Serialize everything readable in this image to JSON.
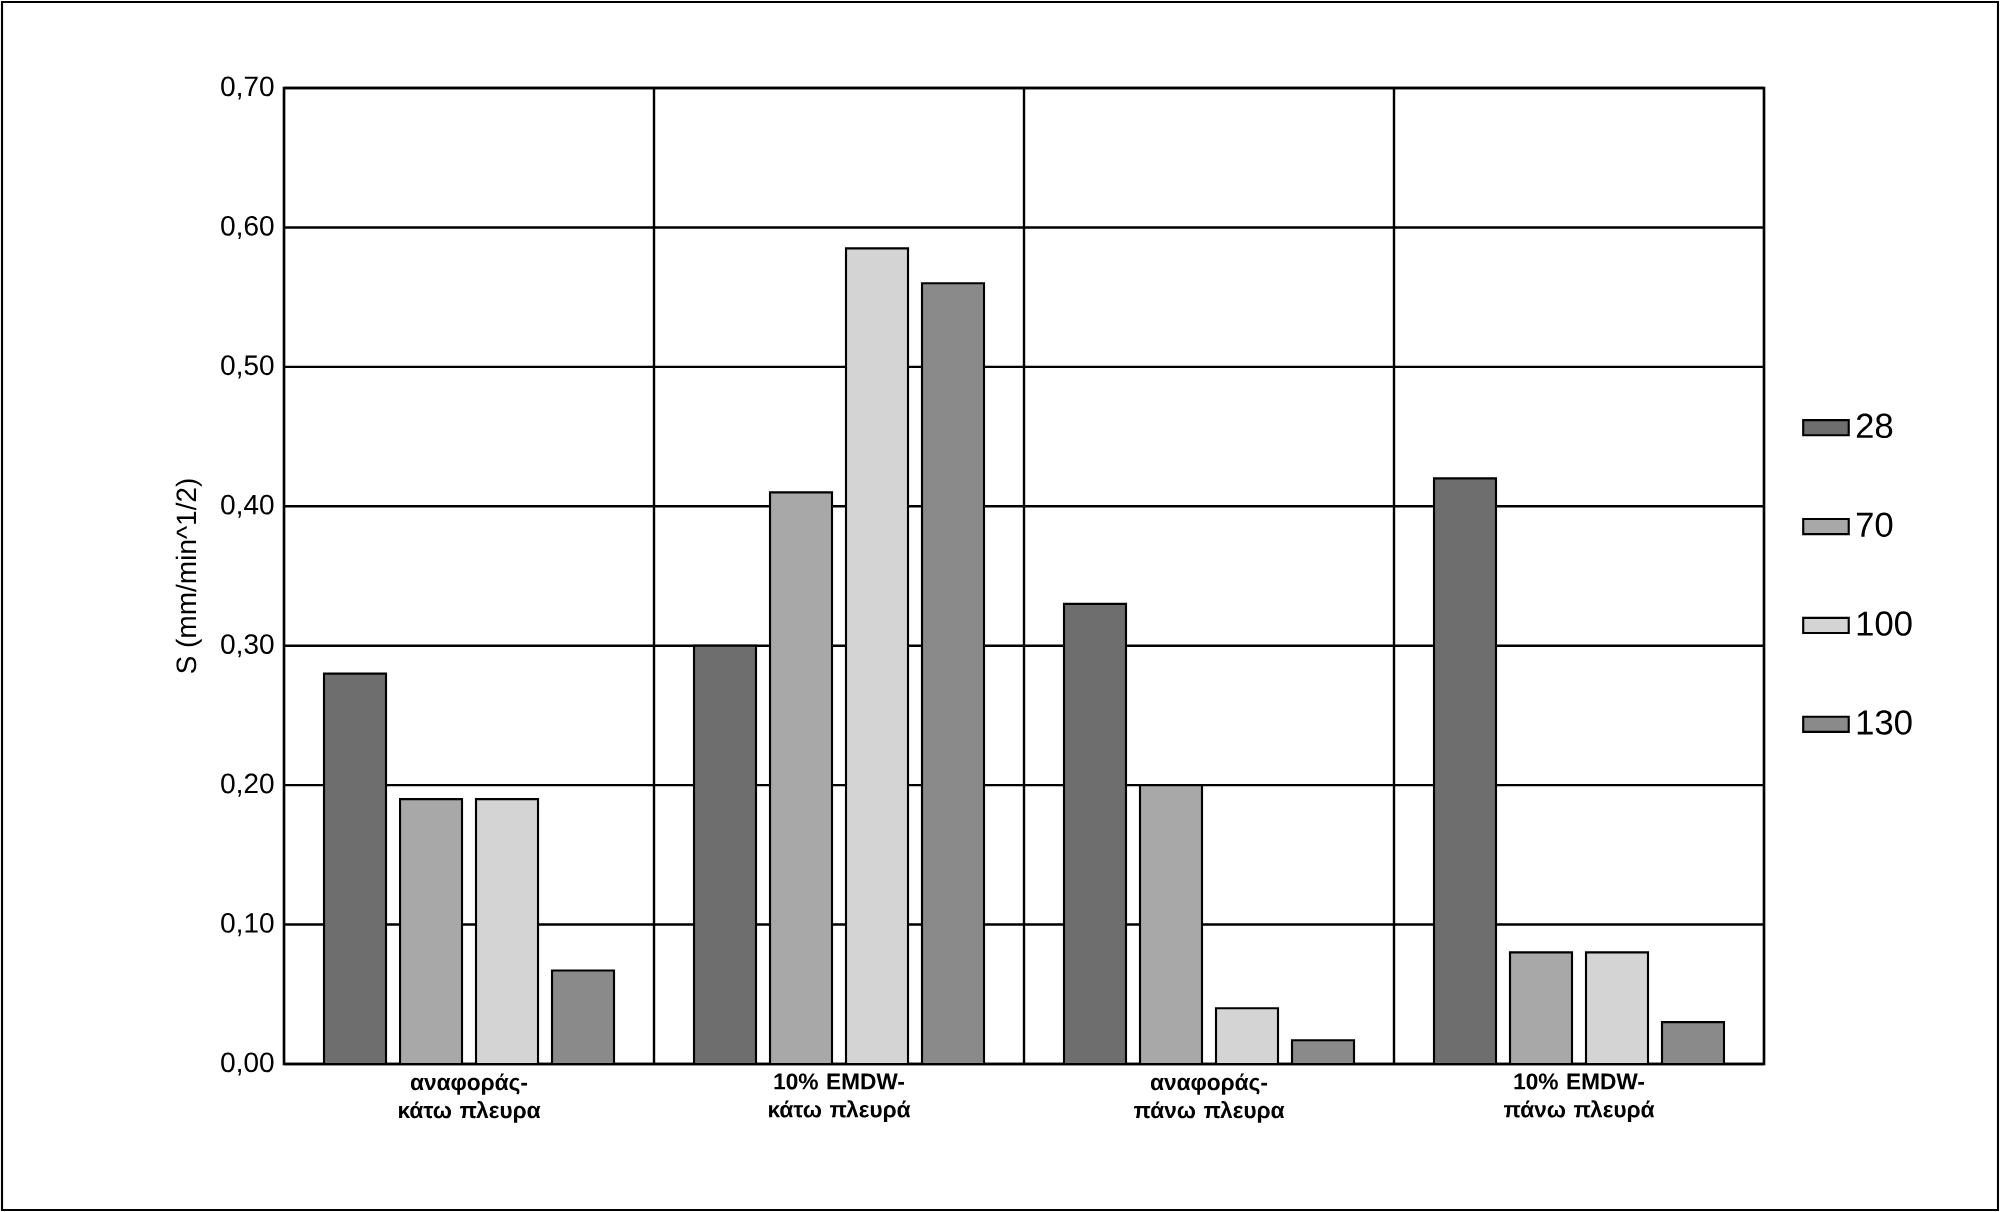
{
  "chart_data": {
    "type": "bar",
    "ylabel": "S (mm/min^1/2)",
    "categories": [
      "αναφοράς-κάτω πλευρα",
      "10% EMDW-κάτω πλευρά",
      "αναφοράς-πάνω πλευρα",
      "10% EMDW-πάνω πλευρά"
    ],
    "series": [
      {
        "name": "28",
        "color": "#6e6e6e",
        "values": [
          0.28,
          0.3,
          0.33,
          0.42
        ]
      },
      {
        "name": "70",
        "color": "#a8a8a8",
        "values": [
          0.19,
          0.41,
          0.2,
          0.08
        ]
      },
      {
        "name": "100",
        "color": "#d4d4d4",
        "values": [
          0.19,
          0.585,
          0.04,
          0.08
        ]
      },
      {
        "name": "130",
        "color": "#8a8a8a",
        "values": [
          0.067,
          0.56,
          0.017,
          0.03
        ]
      }
    ],
    "ylim": [
      0,
      0.7
    ],
    "yticks": [
      {
        "value": 0,
        "label": "0,00"
      },
      {
        "value": 0.1,
        "label": "0,10"
      },
      {
        "value": 0.2,
        "label": "0,20"
      },
      {
        "value": 0.3,
        "label": "0,30"
      },
      {
        "value": 0.4,
        "label": "0,40"
      },
      {
        "value": 0.5,
        "label": "0,50"
      },
      {
        "value": 0.6,
        "label": "0,60"
      },
      {
        "value": 0.7,
        "label": "0,70"
      }
    ],
    "grid": true,
    "legend": "right"
  }
}
